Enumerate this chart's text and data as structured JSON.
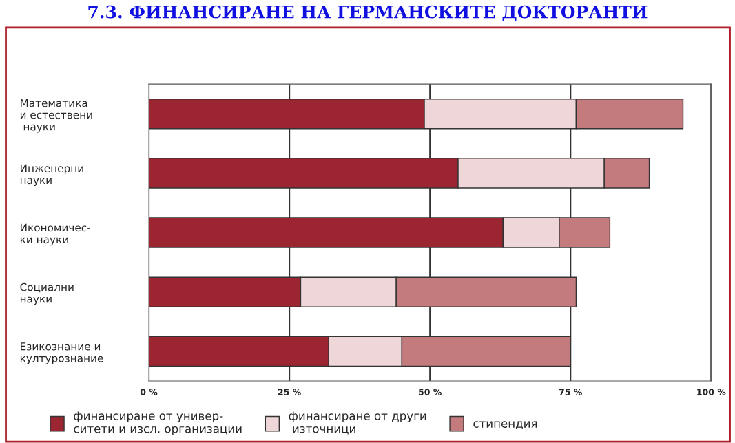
{
  "chart_data": {
    "type": "bar",
    "orientation": "horizontal",
    "stacked": true,
    "title": "7.3. ФИНАНСИРАНЕ НА ГЕРМАНСКИТЕ ДОКТОРАНТИ",
    "categories": [
      "Математика\nи естествени\n науки",
      "Инженерни\nнауки",
      "Икономичес-\nки науки",
      "Социални\nнауки",
      "Езикознание и\nкултурознание"
    ],
    "series": [
      {
        "name": "финансиране от универ-\nситети и изсл. организации",
        "color": "#9b2530",
        "values": [
          49,
          55,
          63,
          27,
          32
        ]
      },
      {
        "name": "финансиране от други\n източници",
        "color": "#efd6d8",
        "values": [
          27,
          26,
          10,
          17,
          13
        ]
      },
      {
        "name": "стипендия",
        "color": "#c47b7e",
        "values": [
          19,
          8,
          9,
          32,
          30
        ]
      }
    ],
    "xlim": [
      0,
      100
    ],
    "xticks": [
      {
        "value": 0,
        "label": "0 %"
      },
      {
        "value": 25,
        "label": "25 %"
      },
      {
        "value": 50,
        "label": "50 %"
      },
      {
        "value": 75,
        "label": "75 %"
      },
      {
        "value": 100,
        "label": "100 %"
      }
    ],
    "grid": "x",
    "legend": "bottom"
  }
}
